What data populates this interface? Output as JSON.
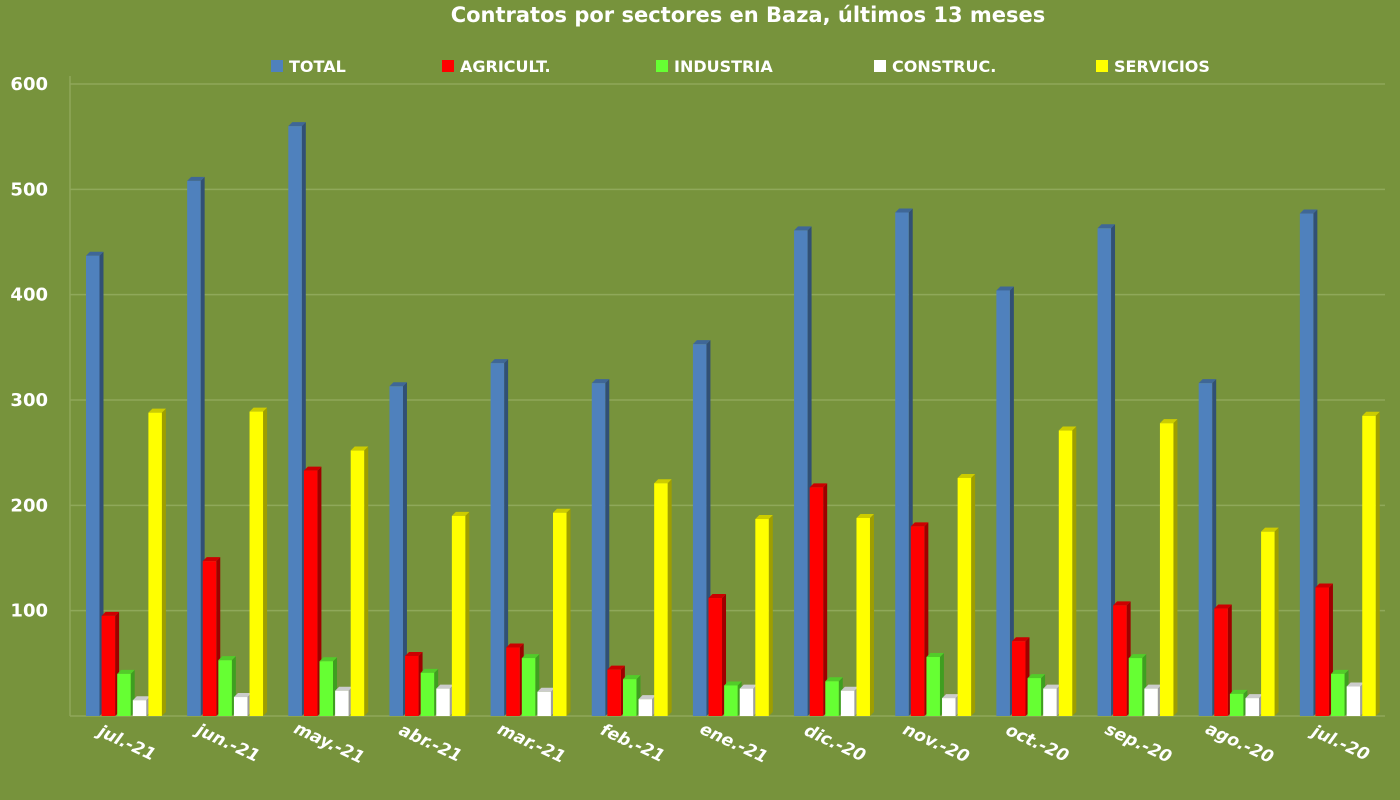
{
  "chart_data": {
    "type": "bar",
    "title": "Contratos por sectores en Baza, últimos 13 meses",
    "xlabel": "",
    "ylabel": "",
    "ylim": [
      0,
      600
    ],
    "yticks": [
      100,
      200,
      300,
      400,
      500,
      600
    ],
    "grid": true,
    "legend_position": "top",
    "categories": [
      "jul.-21",
      "jun.-21",
      "may.-21",
      "abr.-21",
      "mar.-21",
      "feb.-21",
      "ene.-21",
      "dic.-20",
      "nov.-20",
      "oct.-20",
      "sep.-20",
      "ago.-20",
      "jul.-20"
    ],
    "series": [
      {
        "name": "TOTAL",
        "color": "#4f81bd",
        "values": [
          437,
          508,
          560,
          313,
          335,
          316,
          353,
          461,
          478,
          404,
          463,
          316,
          477
        ]
      },
      {
        "name": "AGRICULT.",
        "color": "#ff0000",
        "values": [
          95,
          147,
          233,
          57,
          65,
          44,
          112,
          217,
          180,
          71,
          105,
          102,
          122
        ]
      },
      {
        "name": "INDUSTRIA",
        "color": "#66ff33",
        "values": [
          40,
          53,
          52,
          41,
          55,
          35,
          29,
          33,
          56,
          36,
          55,
          21,
          40
        ]
      },
      {
        "name": "CONSTRUC.",
        "color": "#ffffff",
        "values": [
          15,
          18,
          24,
          26,
          23,
          16,
          26,
          24,
          17,
          26,
          26,
          17,
          28
        ]
      },
      {
        "name": "SERVICIOS",
        "color": "#ffff00",
        "values": [
          288,
          289,
          252,
          190,
          193,
          221,
          187,
          188,
          226,
          271,
          278,
          175,
          285
        ]
      }
    ]
  }
}
